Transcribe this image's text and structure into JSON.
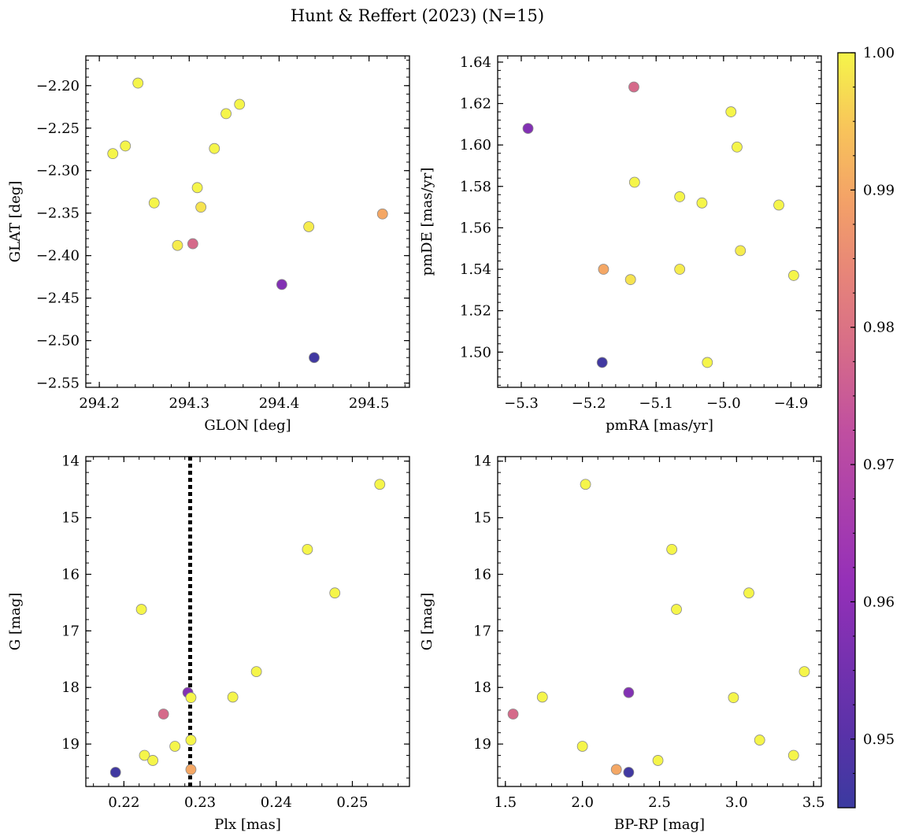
{
  "suptitle": "Hunt & Reffert (2023) (N=15)",
  "colors": {
    "marker_edge": "#8a8a8a",
    "reference_line": "#000000",
    "colormap": "plasma"
  },
  "colorbar": {
    "range": [
      0.945,
      1.0
    ],
    "ticks": [
      0.95,
      0.96,
      0.97,
      0.98,
      0.99,
      1.0
    ],
    "tick_labels": [
      "0.95",
      "0.96",
      "0.97",
      "0.98",
      "0.99",
      "1.00"
    ]
  },
  "chart_data": [
    {
      "type": "scatter",
      "xlabel": "GLON [deg]",
      "ylabel": "GLAT [deg]",
      "xlim": [
        294.185,
        294.545
      ],
      "ylim": [
        -2.555,
        -2.165
      ],
      "invert_y": false,
      "xticks": [
        294.2,
        294.3,
        294.4,
        294.5
      ],
      "xtick_labels": [
        "294.2",
        "294.3",
        "294.4",
        "294.5"
      ],
      "yticks": [
        -2.2,
        -2.25,
        -2.3,
        -2.35,
        -2.4,
        -2.45,
        -2.5,
        -2.55
      ],
      "ytick_labels": [
        "−2.20",
        "−2.25",
        "−2.30",
        "−2.35",
        "−2.40",
        "−2.45",
        "−2.50",
        "−2.55"
      ],
      "points": [
        {
          "x": 294.243,
          "y": -2.197,
          "c": 1.0
        },
        {
          "x": 294.229,
          "y": -2.271,
          "c": 1.0
        },
        {
          "x": 294.215,
          "y": -2.28,
          "c": 1.0
        },
        {
          "x": 294.341,
          "y": -2.233,
          "c": 1.0
        },
        {
          "x": 294.356,
          "y": -2.222,
          "c": 1.0
        },
        {
          "x": 294.328,
          "y": -2.274,
          "c": 1.0
        },
        {
          "x": 294.309,
          "y": -2.32,
          "c": 1.0
        },
        {
          "x": 294.261,
          "y": -2.338,
          "c": 1.0
        },
        {
          "x": 294.313,
          "y": -2.343,
          "c": 0.998
        },
        {
          "x": 294.433,
          "y": -2.366,
          "c": 0.999
        },
        {
          "x": 294.515,
          "y": -2.351,
          "c": 0.99
        },
        {
          "x": 294.287,
          "y": -2.388,
          "c": 0.999
        },
        {
          "x": 294.304,
          "y": -2.386,
          "c": 0.978
        },
        {
          "x": 294.403,
          "y": -2.434,
          "c": 0.958
        },
        {
          "x": 294.439,
          "y": -2.52,
          "c": 0.946
        }
      ]
    },
    {
      "type": "scatter",
      "xlabel": "pmRA [mas/yr]",
      "ylabel": "pmDE [mas/yr]",
      "xlim": [
        -5.335,
        -4.855
      ],
      "ylim": [
        1.483,
        1.643
      ],
      "invert_y": false,
      "xticks": [
        -5.3,
        -5.2,
        -5.1,
        -5.0,
        -4.9
      ],
      "xtick_labels": [
        "−5.3",
        "−5.2",
        "−5.1",
        "−5.0",
        "−4.9"
      ],
      "yticks": [
        1.5,
        1.52,
        1.54,
        1.56,
        1.58,
        1.6,
        1.62,
        1.64
      ],
      "ytick_labels": [
        "1.50",
        "1.52",
        "1.54",
        "1.56",
        "1.58",
        "1.60",
        "1.62",
        "1.64"
      ],
      "points": [
        {
          "x": -5.133,
          "y": 1.628,
          "c": 0.978
        },
        {
          "x": -5.29,
          "y": 1.608,
          "c": 0.958
        },
        {
          "x": -4.989,
          "y": 1.616,
          "c": 1.0
        },
        {
          "x": -4.98,
          "y": 1.599,
          "c": 1.0
        },
        {
          "x": -5.132,
          "y": 1.582,
          "c": 1.0
        },
        {
          "x": -5.065,
          "y": 1.575,
          "c": 1.0
        },
        {
          "x": -5.032,
          "y": 1.572,
          "c": 1.0
        },
        {
          "x": -4.918,
          "y": 1.571,
          "c": 1.0
        },
        {
          "x": -4.975,
          "y": 1.549,
          "c": 0.999
        },
        {
          "x": -5.178,
          "y": 1.54,
          "c": 0.99
        },
        {
          "x": -5.065,
          "y": 1.54,
          "c": 0.999
        },
        {
          "x": -5.138,
          "y": 1.535,
          "c": 0.998
        },
        {
          "x": -4.896,
          "y": 1.537,
          "c": 1.0
        },
        {
          "x": -5.18,
          "y": 1.495,
          "c": 0.946
        },
        {
          "x": -5.024,
          "y": 1.495,
          "c": 1.0
        }
      ]
    },
    {
      "type": "scatter",
      "xlabel": "Plx [mas]",
      "ylabel": "G [mag]",
      "xlim": [
        0.215,
        0.2575
      ],
      "ylim": [
        19.75,
        13.92
      ],
      "invert_y": true,
      "xticks": [
        0.22,
        0.23,
        0.24,
        0.25
      ],
      "xtick_labels": [
        "0.22",
        "0.23",
        "0.24",
        "0.25"
      ],
      "yticks": [
        14,
        15,
        16,
        17,
        18,
        19
      ],
      "ytick_labels": [
        "14",
        "15",
        "16",
        "17",
        "18",
        "19"
      ],
      "vline": {
        "x": 0.2287,
        "style": "dotted"
      },
      "points": [
        {
          "x": 0.2536,
          "y": 14.41,
          "c": 1.0
        },
        {
          "x": 0.2441,
          "y": 15.56,
          "c": 1.0
        },
        {
          "x": 0.2477,
          "y": 16.33,
          "c": 1.0
        },
        {
          "x": 0.2223,
          "y": 16.62,
          "c": 1.0
        },
        {
          "x": 0.2374,
          "y": 17.72,
          "c": 1.0
        },
        {
          "x": 0.2284,
          "y": 18.09,
          "c": 0.958
        },
        {
          "x": 0.2288,
          "y": 18.18,
          "c": 1.0
        },
        {
          "x": 0.2343,
          "y": 18.17,
          "c": 1.0
        },
        {
          "x": 0.2252,
          "y": 18.47,
          "c": 0.978
        },
        {
          "x": 0.2288,
          "y": 18.93,
          "c": 1.0
        },
        {
          "x": 0.2267,
          "y": 19.04,
          "c": 1.0
        },
        {
          "x": 0.2227,
          "y": 19.2,
          "c": 1.0
        },
        {
          "x": 0.2238,
          "y": 19.29,
          "c": 1.0
        },
        {
          "x": 0.2288,
          "y": 19.45,
          "c": 0.99
        },
        {
          "x": 0.2189,
          "y": 19.5,
          "c": 0.946
        }
      ]
    },
    {
      "type": "scatter",
      "xlabel": "BP-RP [mag]",
      "ylabel": "G [mag]",
      "xlim": [
        1.45,
        3.55
      ],
      "ylim": [
        19.75,
        13.92
      ],
      "invert_y": true,
      "xticks": [
        1.5,
        2.0,
        2.5,
        3.0,
        3.5
      ],
      "xtick_labels": [
        "1.5",
        "2.0",
        "2.5",
        "3.0",
        "3.5"
      ],
      "yticks": [
        14,
        15,
        16,
        17,
        18,
        19
      ],
      "ytick_labels": [
        "14",
        "15",
        "16",
        "17",
        "18",
        "19"
      ],
      "points": [
        {
          "x": 2.02,
          "y": 14.41,
          "c": 1.0
        },
        {
          "x": 2.58,
          "y": 15.56,
          "c": 1.0
        },
        {
          "x": 3.08,
          "y": 16.33,
          "c": 1.0
        },
        {
          "x": 2.61,
          "y": 16.62,
          "c": 1.0
        },
        {
          "x": 3.44,
          "y": 17.72,
          "c": 1.0
        },
        {
          "x": 2.3,
          "y": 18.09,
          "c": 0.958
        },
        {
          "x": 1.74,
          "y": 18.17,
          "c": 1.0
        },
        {
          "x": 2.98,
          "y": 18.18,
          "c": 1.0
        },
        {
          "x": 1.55,
          "y": 18.47,
          "c": 0.978
        },
        {
          "x": 3.15,
          "y": 18.93,
          "c": 1.0
        },
        {
          "x": 2.0,
          "y": 19.04,
          "c": 1.0
        },
        {
          "x": 3.37,
          "y": 19.2,
          "c": 1.0
        },
        {
          "x": 2.49,
          "y": 19.29,
          "c": 1.0
        },
        {
          "x": 2.22,
          "y": 19.45,
          "c": 0.99
        },
        {
          "x": 2.3,
          "y": 19.5,
          "c": 0.946
        }
      ]
    }
  ]
}
